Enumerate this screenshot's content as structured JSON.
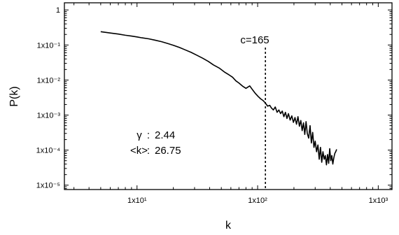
{
  "chart_data": {
    "type": "line",
    "xlabel": "k",
    "ylabel": "P(k)",
    "x_scale": "log",
    "y_scale": "log",
    "xlim": [
      2.5,
      1300
    ],
    "ylim": [
      7.5e-06,
      1.6
    ],
    "x_ticks": [
      {
        "value": 10,
        "label": "1x10¹"
      },
      {
        "value": 100,
        "label": "1x10²"
      },
      {
        "value": 1000,
        "label": "1x10³"
      }
    ],
    "y_ticks": [
      {
        "value": 1,
        "label": "1"
      },
      {
        "value": 0.1,
        "label": "1x10⁻¹"
      },
      {
        "value": 0.01,
        "label": "1x10⁻²"
      },
      {
        "value": 0.001,
        "label": "1x10⁻³"
      },
      {
        "value": 0.0001,
        "label": "1x10⁻⁴"
      },
      {
        "value": 1e-05,
        "label": "1x10⁻⁵"
      }
    ],
    "grid": false,
    "series": [
      {
        "color": "#000000",
        "points": [
          [
            5.0,
            0.24
          ],
          [
            6.0,
            0.22
          ],
          [
            7.0,
            0.205
          ],
          [
            8.0,
            0.19
          ],
          [
            9.0,
            0.18
          ],
          [
            10.0,
            0.17
          ],
          [
            11.0,
            0.16
          ],
          [
            12.5,
            0.15
          ],
          [
            14.0,
            0.138
          ],
          [
            16.0,
            0.124
          ],
          [
            18.0,
            0.11
          ],
          [
            20.0,
            0.098
          ],
          [
            22.5,
            0.085
          ],
          [
            25.0,
            0.073
          ],
          [
            28.0,
            0.062
          ],
          [
            31.0,
            0.052
          ],
          [
            35.0,
            0.042
          ],
          [
            39.0,
            0.034
          ],
          [
            43.0,
            0.027
          ],
          [
            48.0,
            0.022
          ],
          [
            53.0,
            0.017
          ],
          [
            58.0,
            0.014
          ],
          [
            62.0,
            0.012
          ],
          [
            66.0,
            0.0095
          ],
          [
            70.0,
            0.0082
          ],
          [
            75.0,
            0.0067
          ],
          [
            80.0,
            0.0058
          ],
          [
            86.0,
            0.0068
          ],
          [
            91.0,
            0.0052
          ],
          [
            96.0,
            0.0041
          ],
          [
            101.0,
            0.0034
          ],
          [
            106.0,
            0.0029
          ],
          [
            111.0,
            0.0026
          ],
          [
            116.0,
            0.0022
          ],
          [
            121.0,
            0.0018
          ],
          [
            126.0,
            0.0019
          ],
          [
            130.0,
            0.0016
          ],
          [
            135.0,
            0.0014
          ],
          [
            140.0,
            0.0017
          ],
          [
            145.0,
            0.0012
          ],
          [
            150.0,
            0.0014
          ],
          [
            155.0,
            0.0011
          ],
          [
            160.0,
            0.0013
          ],
          [
            165.0,
            0.0009
          ],
          [
            170.0,
            0.0012
          ],
          [
            175.0,
            0.0008
          ],
          [
            180.0,
            0.0011
          ],
          [
            186.0,
            0.00072
          ],
          [
            192.0,
            0.00095
          ],
          [
            198.0,
            0.00062
          ],
          [
            204.0,
            0.00085
          ],
          [
            210.0,
            0.00055
          ],
          [
            216.0,
            0.0009
          ],
          [
            222.0,
            0.00048
          ],
          [
            228.0,
            0.0007
          ],
          [
            234.0,
            0.00036
          ],
          [
            240.0,
            0.0006
          ],
          [
            246.0,
            0.00028
          ],
          [
            252.0,
            0.00065
          ],
          [
            258.0,
            0.0003
          ],
          [
            265.0,
            0.00022
          ],
          [
            272.0,
            0.0005
          ],
          [
            279.0,
            0.00016
          ],
          [
            286.0,
            0.00032
          ],
          [
            293.0,
            0.00012
          ],
          [
            300.0,
            0.00018
          ],
          [
            308.0,
            9e-05
          ],
          [
            316.0,
            0.00014
          ],
          [
            324.0,
            5.5e-05
          ],
          [
            332.0,
            0.00012
          ],
          [
            340.0,
            4.5e-05
          ],
          [
            348.0,
            9e-05
          ],
          [
            356.0,
            5.5e-05
          ],
          [
            364.0,
            7e-05
          ],
          [
            372.0,
            3.8e-05
          ],
          [
            380.0,
            7.5e-05
          ],
          [
            388.0,
            4.2e-05
          ],
          [
            396.0,
            0.00011
          ],
          [
            404.0,
            5e-05
          ],
          [
            412.0,
            7e-05
          ],
          [
            420.0,
            4e-05
          ],
          [
            428.0,
            6e-05
          ],
          [
            436.0,
            8e-05
          ],
          [
            444.0,
            9e-05
          ],
          [
            452.0,
            0.000105
          ]
        ]
      }
    ],
    "annotations": {
      "cutoff": {
        "x": 116,
        "label": "c=165"
      },
      "gamma": {
        "symbol": "γ",
        "sep": ":",
        "value": "2.44"
      },
      "mean_k": {
        "symbol": "<k>",
        "sep": ":",
        "value": "26.75"
      }
    }
  }
}
